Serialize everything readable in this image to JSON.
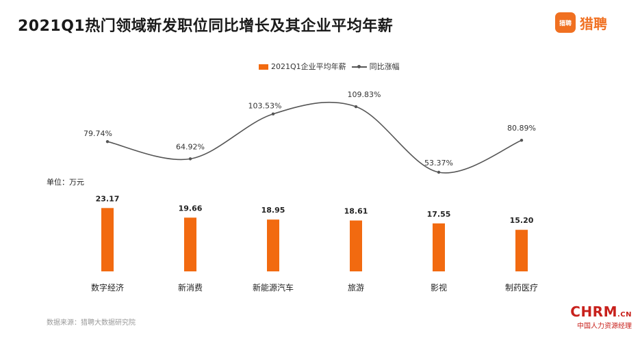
{
  "header": {
    "title": "2021Q1热门领域新发职位同比增长及其企业平均年薪",
    "brand_icon_text": "猎聘",
    "brand_name": "猎聘"
  },
  "legend": {
    "bar_label": "2021Q1企业平均年薪",
    "line_label": "同比涨幅"
  },
  "unit_label": "单位：万元",
  "source_note": "数据来源：猎聘大数据研究院",
  "watermark": {
    "main": "CHRM",
    "suffix": ".CN",
    "sub": "中国人力资源经理"
  },
  "colors": {
    "bar": "#f26a10",
    "line": "#555555",
    "brand": "#f07021",
    "watermark": "#c8211c"
  },
  "chart_data": {
    "type": "bar",
    "categories": [
      "数字经济",
      "新消费",
      "新能源汽车",
      "旅游",
      "影视",
      "制药医疗"
    ],
    "series": [
      {
        "name": "2021Q1企业平均年薪",
        "type": "bar",
        "values": [
          23.17,
          19.66,
          18.95,
          18.61,
          17.55,
          15.2
        ],
        "labels": [
          "23.17",
          "19.66",
          "18.95",
          "18.61",
          "17.55",
          "15.20"
        ]
      },
      {
        "name": "同比涨幅",
        "type": "line",
        "values": [
          79.74,
          64.92,
          103.53,
          109.83,
          53.37,
          80.89
        ],
        "labels": [
          "79.74%",
          "64.92%",
          "103.53%",
          "109.83%",
          "53.37%",
          "80.89%"
        ]
      }
    ],
    "ylabel": "单位：万元",
    "grid": false,
    "legend_position": "top-center"
  }
}
